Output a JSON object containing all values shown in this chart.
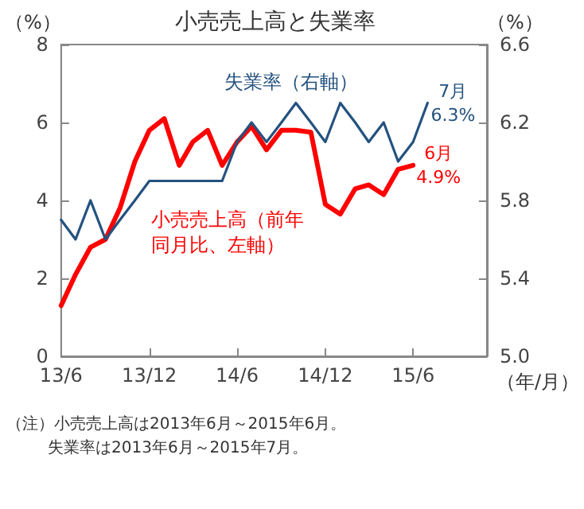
{
  "chart_data": {
    "type": "line",
    "title": "小売売上高と失業率",
    "xlabel": "（年/月）",
    "ylabel": "（%）",
    "y2label": "（%）",
    "x": [
      "2013-06",
      "2013-07",
      "2013-08",
      "2013-09",
      "2013-10",
      "2013-11",
      "2013-12",
      "2014-01",
      "2014-02",
      "2014-03",
      "2014-04",
      "2014-05",
      "2014-06",
      "2014-07",
      "2014-08",
      "2014-09",
      "2014-10",
      "2014-11",
      "2014-12",
      "2015-01",
      "2015-02",
      "2015-03",
      "2015-04",
      "2015-05",
      "2015-06",
      "2015-07"
    ],
    "series": [
      {
        "name": "失業率（右軸）",
        "color": "#24527f",
        "axis": "y2",
        "values": [
          5.7,
          5.6,
          5.8,
          5.6,
          5.7,
          5.8,
          5.9,
          5.9,
          5.9,
          5.9,
          5.9,
          5.9,
          6.1,
          6.2,
          6.1,
          6.2,
          6.3,
          6.2,
          6.1,
          6.3,
          6.2,
          6.1,
          6.2,
          6.0,
          6.1,
          6.3
        ],
        "value_labels": [
          null,
          null,
          null,
          null,
          null,
          null,
          null,
          null,
          null,
          null,
          null,
          null,
          null,
          null,
          null,
          null,
          null,
          null,
          null,
          null,
          null,
          null,
          null,
          null,
          null,
          "7月\n6.3%"
        ]
      },
      {
        "name": "小売売上高（前年同月比、左軸）",
        "color": "#ff0000",
        "values": [
          1.3,
          2.1,
          2.8,
          3.0,
          3.8,
          5.0,
          5.8,
          6.1,
          4.9,
          5.5,
          5.8,
          4.9,
          5.5,
          5.9,
          5.3,
          5.8,
          5.8,
          5.75,
          3.9,
          3.65,
          4.3,
          4.4,
          4.15,
          4.8,
          4.9,
          null
        ],
        "value_labels": [
          null,
          null,
          null,
          null,
          null,
          null,
          null,
          null,
          null,
          null,
          null,
          null,
          null,
          null,
          null,
          null,
          null,
          null,
          null,
          null,
          null,
          null,
          null,
          null,
          "6月\n4.9%",
          null
        ]
      }
    ],
    "xlim": [
      "2013-06",
      "2015-11"
    ],
    "xticks": [
      {
        "value": "2013-06",
        "label": "13/6"
      },
      {
        "value": "2013-12",
        "label": "13/12"
      },
      {
        "value": "2014-06",
        "label": "14/6"
      },
      {
        "value": "2014-12",
        "label": "14/12"
      },
      {
        "value": "2015-06",
        "label": "15/6"
      }
    ],
    "ylim": [
      0,
      8
    ],
    "yticks": [
      0,
      2,
      4,
      6,
      8
    ],
    "y2lim": [
      5.0,
      6.6
    ],
    "y2ticks": [
      {
        "value": 5.0,
        "label": "5.0"
      },
      5.4,
      5.8,
      6.2,
      6.6
    ],
    "grid": false,
    "legend": false,
    "marker": "none",
    "line_style": "solid",
    "annotations": [
      "（注）小売売上高は2013年6月～2015年6月。",
      "失業率は2013年6月～2015年7月。"
    ]
  }
}
